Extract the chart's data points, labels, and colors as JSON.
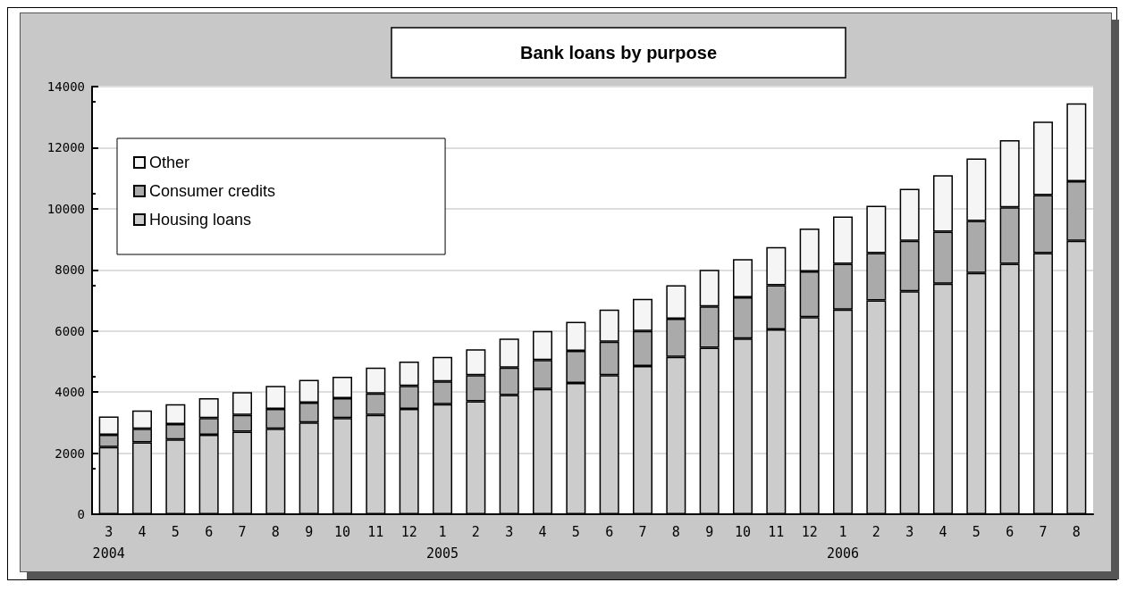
{
  "chart_data": {
    "type": "bar",
    "title": "Bank loans by purpose",
    "stacked": true,
    "categories": [
      "3\n2004",
      "4",
      "5",
      "6",
      "7",
      "8",
      "9",
      "10",
      "11",
      "12",
      "1\n2005",
      "2",
      "3",
      "4",
      "5",
      "6",
      "7",
      "8",
      "9",
      "10",
      "11",
      "12",
      "1\n2006",
      "2",
      "3",
      "4",
      "5",
      "6",
      "7",
      "8"
    ],
    "series": [
      {
        "name": "Housing loans",
        "color": "#cccccc",
        "values": [
          2200,
          2350,
          2450,
          2600,
          2700,
          2800,
          3000,
          3150,
          3250,
          3450,
          3600,
          3700,
          3900,
          4100,
          4300,
          4550,
          4850,
          5150,
          5450,
          5750,
          6050,
          6450,
          6700,
          7000,
          7300,
          7550,
          7900,
          8200,
          8550,
          8950
        ]
      },
      {
        "name": "Consumer credits",
        "color": "#aaaaaa",
        "values": [
          400,
          450,
          500,
          550,
          550,
          650,
          650,
          650,
          700,
          750,
          750,
          850,
          900,
          950,
          1050,
          1100,
          1150,
          1250,
          1350,
          1350,
          1450,
          1500,
          1500,
          1550,
          1650,
          1700,
          1700,
          1850,
          1900,
          1950
        ]
      },
      {
        "name": "Other",
        "color": "#f5f5f5",
        "values": [
          600,
          600,
          650,
          650,
          750,
          750,
          750,
          700,
          850,
          800,
          800,
          850,
          950,
          950,
          950,
          1050,
          1050,
          1100,
          1200,
          1250,
          1250,
          1400,
          1550,
          1550,
          1700,
          1850,
          2050,
          2200,
          2400,
          2550
        ]
      }
    ],
    "ylim": [
      0,
      14000
    ],
    "yticks": [
      0,
      2000,
      4000,
      6000,
      8000,
      10000,
      12000,
      14000
    ],
    "grid": "y",
    "legend": "top left"
  }
}
